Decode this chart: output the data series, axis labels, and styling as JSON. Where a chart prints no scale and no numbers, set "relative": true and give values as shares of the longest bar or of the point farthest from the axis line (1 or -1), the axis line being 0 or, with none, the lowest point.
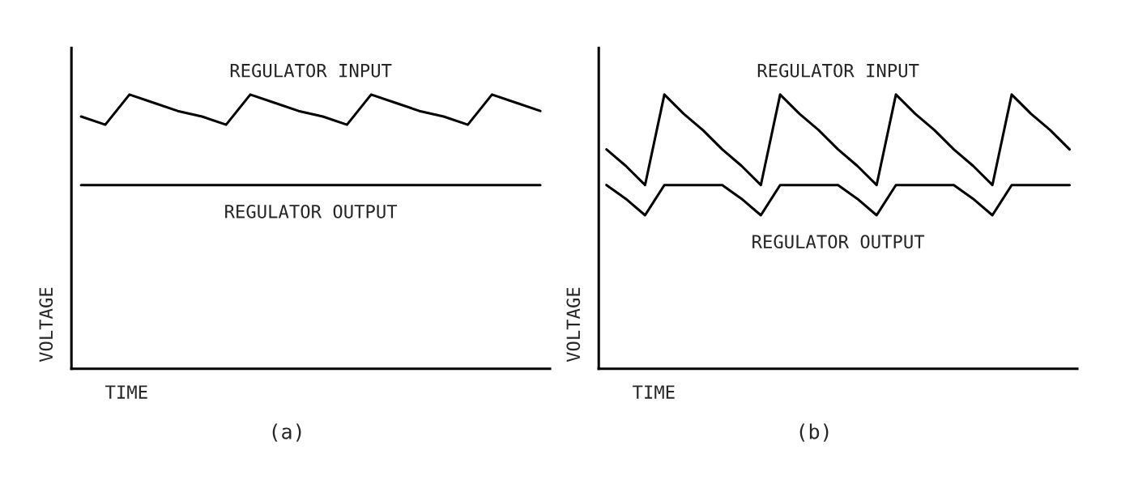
{
  "chart_data": [
    {
      "type": "line",
      "title": "(a)",
      "xlabel": "TIME",
      "ylabel": "VOLTAGE",
      "relative": true,
      "categories": [
        null,
        null,
        null,
        null,
        null,
        null,
        null,
        null,
        null,
        null,
        null,
        null,
        null,
        null,
        null,
        null,
        null,
        null,
        null,
        null
      ],
      "series": [
        {
          "name": "REGULATOR INPUT",
          "color": "#000000",
          "values": [
            0.92,
            0.89,
            1,
            0.97,
            0.94,
            0.92,
            0.89,
            1,
            0.97,
            0.94,
            0.92,
            0.89,
            1,
            0.97,
            0.94,
            0.92,
            0.89,
            1,
            0.97,
            0.94
          ]
        },
        {
          "name": "REGULATOR OUTPUT",
          "color": "#000000",
          "values": [
            0.67,
            0.67,
            0.67,
            0.67,
            0.67,
            0.67,
            0.67,
            0.67,
            0.67,
            0.67,
            0.67,
            0.67,
            0.67,
            0.67,
            0.67,
            0.67,
            0.67,
            0.67,
            0.67,
            0.67
          ]
        }
      ]
    },
    {
      "type": "line",
      "title": "(b)",
      "xlabel": "TIME",
      "ylabel": "VOLTAGE",
      "relative": true,
      "categories": [
        null,
        null,
        null,
        null,
        null,
        null,
        null,
        null,
        null,
        null,
        null,
        null,
        null,
        null,
        null,
        null,
        null,
        null,
        null,
        null,
        null,
        null,
        null,
        null,
        null
      ],
      "series": [
        {
          "name": "REGULATOR INPUT",
          "color": "#000000",
          "values": [
            0.8,
            0.74,
            0.67,
            1,
            0.93,
            0.87,
            0.8,
            0.74,
            0.67,
            1,
            0.93,
            0.87,
            0.8,
            0.74,
            0.67,
            1,
            0.93,
            0.87,
            0.8,
            0.74,
            0.67,
            1,
            0.93,
            0.87,
            0.8
          ]
        },
        {
          "name": "REGULATOR OUTPUT",
          "color": "#000000",
          "values": [
            0.67,
            0.62,
            0.56,
            0.67,
            0.67,
            0.67,
            0.67,
            0.62,
            0.56,
            0.67,
            0.67,
            0.67,
            0.67,
            0.62,
            0.56,
            0.67,
            0.67,
            0.67,
            0.67,
            0.62,
            0.56,
            0.67,
            0.67,
            0.67,
            0.67
          ]
        }
      ]
    }
  ]
}
